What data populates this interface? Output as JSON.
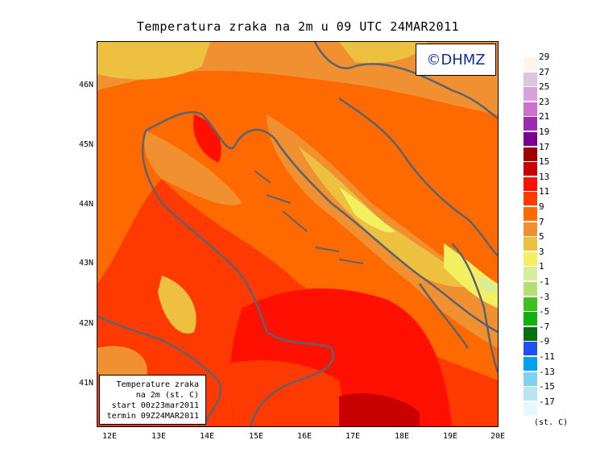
{
  "title": "Temperatura zraka na 2m u 09 UTC 24MAR2011",
  "logo": "©DHMZ",
  "info": [
    "Temperature zraka",
    "na 2m (st. C)",
    "start 00z23mar2011",
    "termin 09Z24MAR2011"
  ],
  "lat_ticks": [
    "46N",
    "45N",
    "44N",
    "43N",
    "42N",
    "41N"
  ],
  "lon_ticks": [
    "12E",
    "13E",
    "14E",
    "15E",
    "16E",
    "17E",
    "18E",
    "19E",
    "20E"
  ],
  "legend": {
    "labels": [
      "29",
      "27",
      "25",
      "23",
      "21",
      "19",
      "17",
      "15",
      "13",
      "11",
      "9",
      "7",
      "5",
      "3",
      "1",
      "-1",
      "-3",
      "-5",
      "-7",
      "-9",
      "-11",
      "-13",
      "-15",
      "-17"
    ],
    "colors": [
      "#fff5ea",
      "#ddc4e0",
      "#d8a0dc",
      "#cc70cc",
      "#9a2cb4",
      "#7a0090",
      "#a00000",
      "#c80000",
      "#ff1000",
      "#ff3a00",
      "#ff6a00",
      "#f09030",
      "#eec040",
      "#f2f060",
      "#d8ec9a",
      "#b4e070",
      "#40c020",
      "#10b010",
      "#087010",
      "#2050f0",
      "#00a0f0",
      "#80d0f0",
      "#b8e6f0",
      "#e6f8ff"
    ],
    "units": "(st. C)"
  }
}
